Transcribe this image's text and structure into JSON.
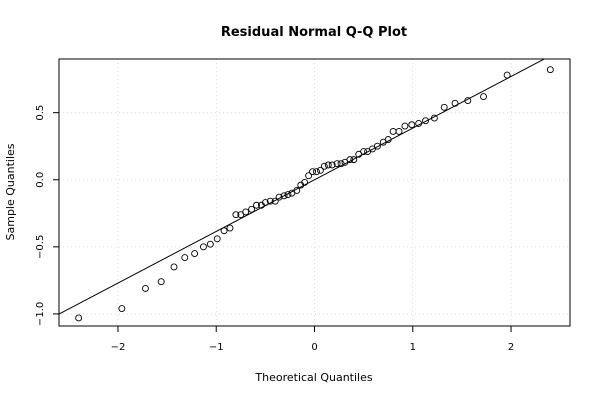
{
  "chart_data": {
    "type": "scatter",
    "title": "Residual Normal Q-Q Plot",
    "xlabel": "Theoretical Quantiles",
    "ylabel": "Sample Quantiles",
    "xlim": [
      -2.6,
      2.6
    ],
    "ylim": [
      -1.09,
      0.9
    ],
    "x_ticks": [
      -2,
      -1,
      0,
      1,
      2
    ],
    "x_tick_labels": [
      "−2",
      "−1",
      "0",
      "1",
      "2"
    ],
    "y_ticks": [
      -1.0,
      -0.5,
      0.0,
      0.5
    ],
    "y_tick_labels": [
      "−1.0",
      "−0.5",
      "0.0",
      "0.5"
    ],
    "grid": true,
    "series": [
      {
        "points": [
          [
            -2.4,
            -1.03
          ],
          [
            -1.96,
            -0.96
          ],
          [
            -1.72,
            -0.81
          ],
          [
            -1.56,
            -0.76
          ],
          [
            -1.43,
            -0.65
          ],
          [
            -1.32,
            -0.58
          ],
          [
            -1.22,
            -0.55
          ],
          [
            -1.13,
            -0.5
          ],
          [
            -1.06,
            -0.48
          ],
          [
            -0.99,
            -0.44
          ],
          [
            -0.92,
            -0.38
          ],
          [
            -0.86,
            -0.36
          ],
          [
            -0.8,
            -0.26
          ],
          [
            -0.75,
            -0.26
          ],
          [
            -0.7,
            -0.24
          ],
          [
            -0.64,
            -0.22
          ],
          [
            -0.59,
            -0.19
          ],
          [
            -0.54,
            -0.19
          ],
          [
            -0.5,
            -0.17
          ],
          [
            -0.45,
            -0.16
          ],
          [
            -0.4,
            -0.16
          ],
          [
            -0.36,
            -0.13
          ],
          [
            -0.31,
            -0.12
          ],
          [
            -0.27,
            -0.11
          ],
          [
            -0.23,
            -0.1
          ],
          [
            -0.18,
            -0.08
          ],
          [
            -0.14,
            -0.04
          ],
          [
            -0.1,
            -0.02
          ],
          [
            -0.06,
            0.03
          ],
          [
            -0.02,
            0.06
          ],
          [
            0.02,
            0.06
          ],
          [
            0.06,
            0.07
          ],
          [
            0.1,
            0.1
          ],
          [
            0.14,
            0.11
          ],
          [
            0.18,
            0.11
          ],
          [
            0.23,
            0.12
          ],
          [
            0.27,
            0.12
          ],
          [
            0.31,
            0.13
          ],
          [
            0.36,
            0.15
          ],
          [
            0.4,
            0.15
          ],
          [
            0.45,
            0.19
          ],
          [
            0.5,
            0.21
          ],
          [
            0.54,
            0.21
          ],
          [
            0.59,
            0.23
          ],
          [
            0.64,
            0.25
          ],
          [
            0.7,
            0.28
          ],
          [
            0.75,
            0.3
          ],
          [
            0.8,
            0.36
          ],
          [
            0.86,
            0.36
          ],
          [
            0.92,
            0.4
          ],
          [
            0.99,
            0.41
          ],
          [
            1.06,
            0.42
          ],
          [
            1.13,
            0.44
          ],
          [
            1.22,
            0.46
          ],
          [
            1.32,
            0.54
          ],
          [
            1.43,
            0.57
          ],
          [
            1.56,
            0.59
          ],
          [
            1.72,
            0.62
          ],
          [
            1.96,
            0.78
          ],
          [
            2.4,
            0.82
          ]
        ]
      }
    ],
    "reference_line": {
      "slope": 0.385,
      "intercept": 0.0
    }
  }
}
